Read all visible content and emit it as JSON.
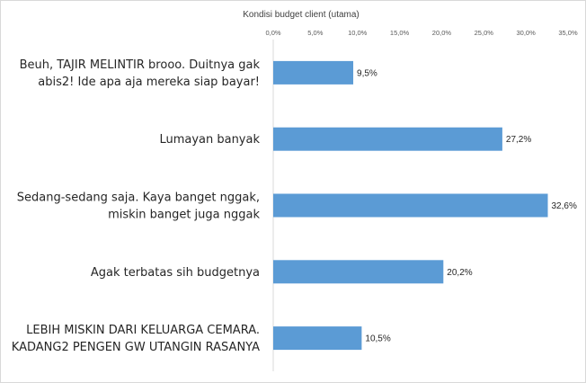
{
  "chart_data": {
    "type": "bar",
    "orientation": "horizontal",
    "title": "Kondisi budget client (utama)",
    "x_axis_position": "top",
    "xlim": [
      0,
      35
    ],
    "x_ticks": [
      "0,0%",
      "5,0%",
      "10,0%",
      "15,0%",
      "20,0%",
      "25,0%",
      "30,0%",
      "35,0%"
    ],
    "categories": [
      [
        "Beuh, TAJIR MELINTIR brooo. Duitnya gak",
        "abis2! Ide apa aja mereka siap bayar!"
      ],
      [
        "Lumayan banyak"
      ],
      [
        "Sedang-sedang saja. Kaya banget nggak,",
        "miskin banget juga nggak"
      ],
      [
        "Agak terbatas sih budgetnya"
      ],
      [
        "LEBIH MISKIN DARI KELUARGA CEMARA.",
        "KADANG2 PENGEN GW UTANGIN RASANYA"
      ]
    ],
    "values": [
      9.5,
      27.2,
      32.6,
      20.2,
      10.5
    ],
    "data_labels": [
      "9,5%",
      "27,2%",
      "32,6%",
      "20,2%",
      "10,5%"
    ],
    "bar_color": "#5b9bd5",
    "grid": false,
    "legend": "none"
  }
}
